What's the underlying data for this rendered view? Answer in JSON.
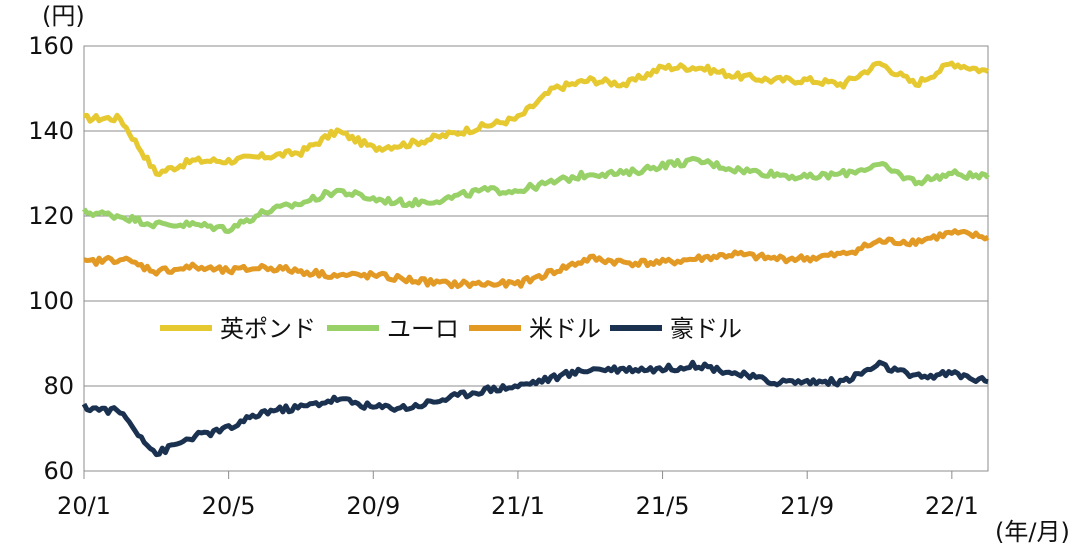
{
  "chart_data": {
    "type": "line",
    "y_unit_label": "(円)",
    "x_unit_label": "(年/月)",
    "ylim": [
      60,
      160
    ],
    "yticks": [
      "160",
      "140",
      "120",
      "100",
      "80",
      "60"
    ],
    "xticks": [
      "20/1",
      "20/5",
      "20/9",
      "21/1",
      "21/5",
      "21/9",
      "22/1"
    ],
    "grid": "horizontal",
    "legend_position": "center-left",
    "x": [
      "2020-01",
      "2020-02",
      "2020-03-mid",
      "2020-04",
      "2020-05",
      "2020-06",
      "2020-07",
      "2020-08",
      "2020-09",
      "2020-10",
      "2020-11",
      "2020-12",
      "2021-01",
      "2021-02",
      "2021-03",
      "2021-04",
      "2021-05",
      "2021-06",
      "2021-07",
      "2021-08",
      "2021-09",
      "2021-10",
      "2021-11",
      "2021-12",
      "2022-01",
      "2022-02"
    ],
    "series": [
      {
        "name": "英ポンド",
        "color": "#e6c931",
        "values": [
          143,
          143,
          130,
          133,
          133,
          134,
          135,
          140,
          136,
          137,
          139,
          141,
          143,
          150,
          152,
          151,
          155,
          155,
          153,
          152,
          152,
          151,
          156,
          151,
          156,
          154
        ]
      },
      {
        "name": "ユーロ",
        "color": "#98d168",
        "values": [
          121,
          120,
          118,
          118,
          117,
          121,
          123,
          126,
          124,
          123,
          124,
          126,
          126,
          128,
          130,
          130,
          132,
          133,
          131,
          130,
          129,
          130,
          132,
          128,
          130,
          129
        ]
      },
      {
        "name": "米ドル",
        "color": "#e39a25",
        "values": [
          109,
          110,
          107,
          108,
          107,
          108,
          107,
          106,
          106,
          105,
          104,
          104,
          104,
          107,
          110,
          109,
          109,
          110,
          111,
          110,
          110,
          111,
          114,
          114,
          116,
          115
        ]
      },
      {
        "name": "豪ドル",
        "color": "#1b3150",
        "values": [
          75,
          74,
          64,
          68,
          70,
          74,
          75,
          77,
          75,
          75,
          77,
          79,
          80,
          82,
          84,
          84,
          84,
          85,
          83,
          81,
          81,
          81,
          85,
          82,
          83,
          81
        ]
      }
    ]
  }
}
